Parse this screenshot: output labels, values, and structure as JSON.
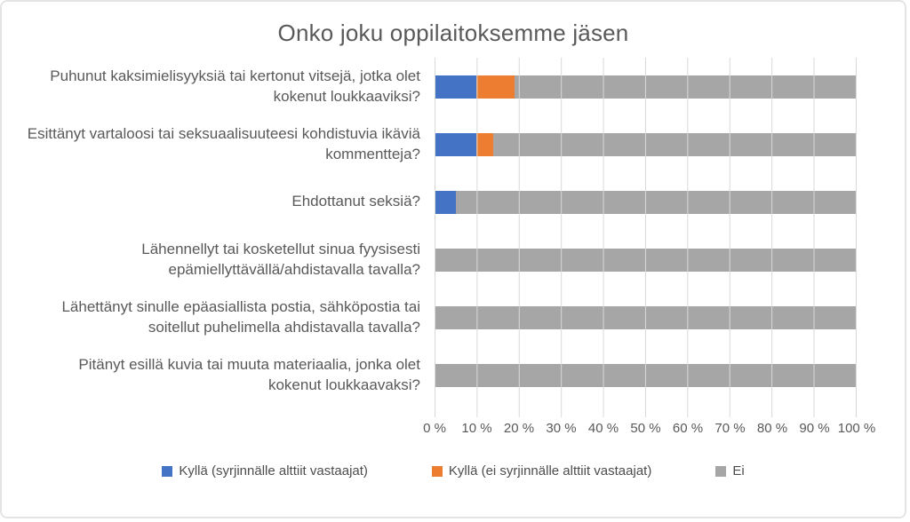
{
  "chart": {
    "background": "#FFFFFF",
    "border_color": "#E4E4E4"
  },
  "chart_data": {
    "type": "bar",
    "subtype": "stacked-horizontal-100pct",
    "title": "Onko joku oppilaitoksemme jäsen",
    "categories": [
      "Puhunut kaksimielisyyksiä tai kertonut vitsejä, jotka olet kokenut loukkaaviksi?",
      "Esittänyt vartaloosi tai seksuaalisuuteesi kohdistuvia ikäviä kommentteja?",
      "Ehdottanut seksiä?",
      "Lähennellyt tai kosketellut sinua fyysisesti epämiellyttävällä/ahdistavalla tavalla?",
      "Lähettänyt sinulle epäasiallista postia, sähköpostia tai soitellut puhelimella ahdistavalla tavalla?",
      "Pitänyt esillä kuvia tai muuta materiaalia, jonka olet kokenut loukkaavaksi?"
    ],
    "series": [
      {
        "name": "Kyllä (syrjinnälle alttiit vastaajat)",
        "color": "#4472C4",
        "values": [
          10,
          10,
          5,
          0,
          0,
          0
        ]
      },
      {
        "name": "Kyllä (ei syrjinnälle alttiit vastaajat)",
        "color": "#ED7D31",
        "values": [
          9,
          4,
          0,
          0,
          0,
          0
        ]
      },
      {
        "name": "Ei",
        "color": "#A6A6A6",
        "values": [
          81,
          86,
          95,
          100,
          100,
          100
        ]
      }
    ],
    "x_ticks": [
      "0 %",
      "10 %",
      "20 %",
      "30 %",
      "40 %",
      "50 %",
      "60 %",
      "70 %",
      "80 %",
      "90 %",
      "100 %"
    ],
    "xlim": [
      0,
      100
    ],
    "xlabel": "",
    "ylabel": "",
    "grid": "vertical",
    "gridline_color": "#D9D9D9",
    "text_color": "#595959",
    "legend_position": "bottom"
  }
}
